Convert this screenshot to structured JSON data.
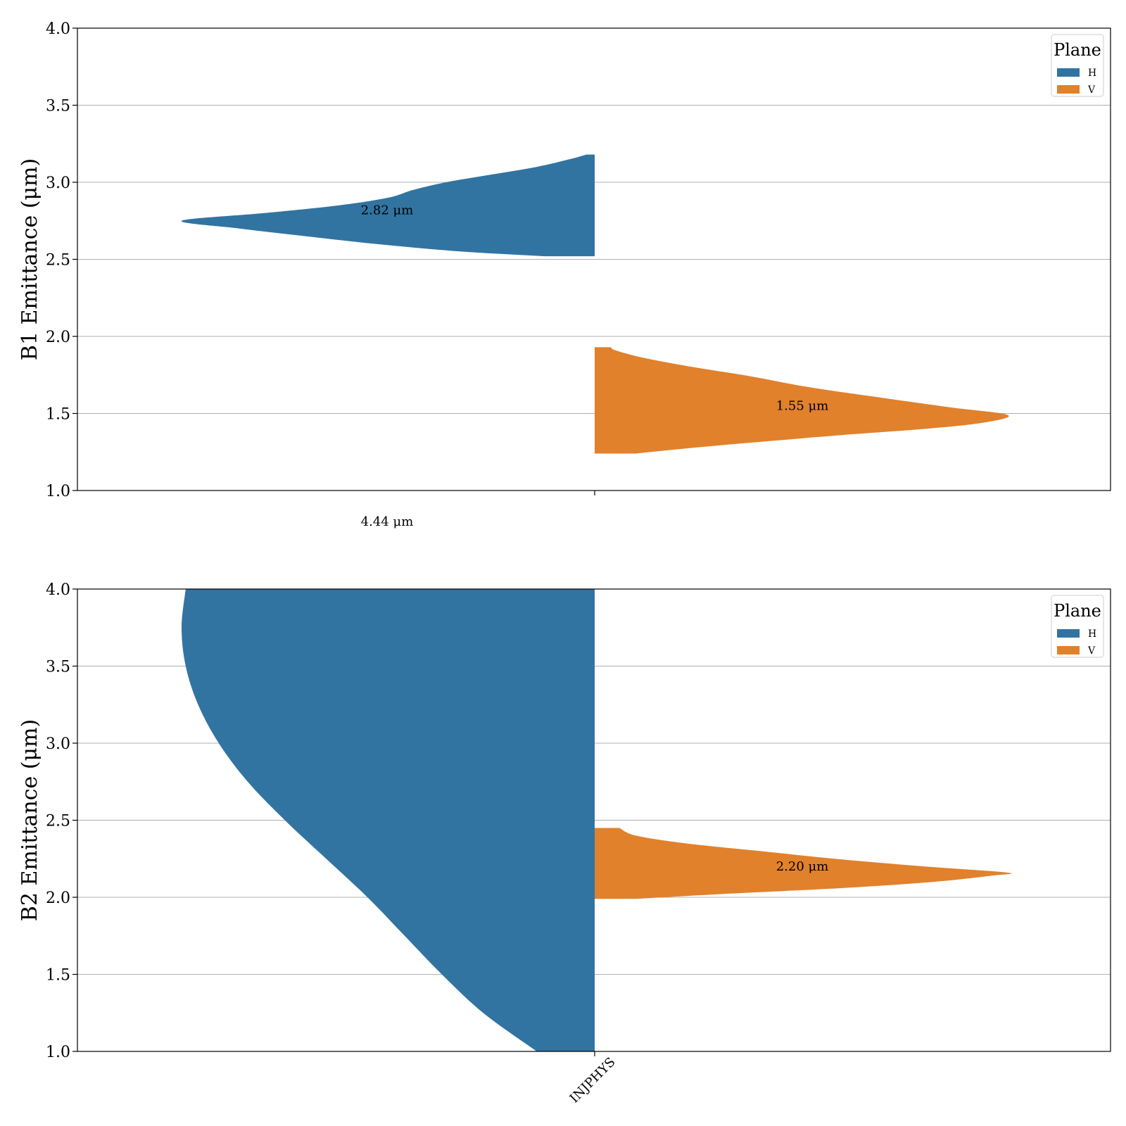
{
  "chart_data": [
    {
      "type": "violin",
      "split": true,
      "ylabel": "B1 Emittance (μm)",
      "ylim": [
        1.0,
        4.0
      ],
      "yticks": [
        "1.0",
        "1.5",
        "2.0",
        "2.5",
        "3.0",
        "3.5",
        "4.0"
      ],
      "grid": "y",
      "categories": [
        ""
      ],
      "legend": {
        "title": "Plane",
        "placement": "top-right",
        "entries": [
          "H",
          "V"
        ]
      },
      "series": [
        {
          "name": "H",
          "color": "#3274a1",
          "side": "left",
          "ymin": 2.52,
          "ymax": 3.18,
          "density": [
            [
              2.52,
              0.12
            ],
            [
              2.55,
              0.32
            ],
            [
              2.6,
              0.53
            ],
            [
              2.65,
              0.7
            ],
            [
              2.7,
              0.86
            ],
            [
              2.75,
              1.0
            ],
            [
              2.8,
              0.8
            ],
            [
              2.85,
              0.62
            ],
            [
              2.9,
              0.5
            ],
            [
              2.95,
              0.44
            ],
            [
              3.0,
              0.36
            ],
            [
              3.05,
              0.25
            ],
            [
              3.1,
              0.14
            ],
            [
              3.15,
              0.06
            ],
            [
              3.18,
              0.02
            ]
          ],
          "annotations": [
            {
              "text": "2.82 μm",
              "y": 2.82
            },
            {
              "text": "4.44 μm",
              "y": 0.8
            }
          ]
        },
        {
          "name": "V",
          "color": "#e1812c",
          "side": "right",
          "ymin": 1.24,
          "ymax": 1.93,
          "density": [
            [
              1.24,
              0.1
            ],
            [
              1.28,
              0.25
            ],
            [
              1.32,
              0.42
            ],
            [
              1.36,
              0.6
            ],
            [
              1.4,
              0.8
            ],
            [
              1.44,
              0.94
            ],
            [
              1.49,
              1.0
            ],
            [
              1.54,
              0.86
            ],
            [
              1.6,
              0.7
            ],
            [
              1.67,
              0.52
            ],
            [
              1.74,
              0.38
            ],
            [
              1.8,
              0.24
            ],
            [
              1.86,
              0.12
            ],
            [
              1.91,
              0.05
            ],
            [
              1.93,
              0.04
            ]
          ],
          "annotations": [
            {
              "text": "1.55 μm",
              "y": 1.55
            }
          ]
        }
      ]
    },
    {
      "type": "violin",
      "split": true,
      "ylabel": "B2 Emittance (μm)",
      "ylim": [
        1.0,
        4.0
      ],
      "yticks": [
        "1.0",
        "1.5",
        "2.0",
        "2.5",
        "3.0",
        "3.5",
        "4.0"
      ],
      "grid": "y",
      "categories": [
        "INJPHYS"
      ],
      "legend": {
        "title": "Plane",
        "placement": "top-right",
        "entries": [
          "H",
          "V"
        ]
      },
      "series": [
        {
          "name": "H",
          "color": "#3274a1",
          "side": "left",
          "ymin": 1.0,
          "ymax": 4.0,
          "density": [
            [
              1.0,
              0.14
            ],
            [
              1.25,
              0.27
            ],
            [
              1.5,
              0.37
            ],
            [
              1.75,
              0.46
            ],
            [
              2.0,
              0.55
            ],
            [
              2.25,
              0.65
            ],
            [
              2.5,
              0.75
            ],
            [
              2.75,
              0.84
            ],
            [
              3.0,
              0.91
            ],
            [
              3.25,
              0.96
            ],
            [
              3.5,
              0.99
            ],
            [
              3.75,
              1.0
            ],
            [
              4.0,
              0.99
            ]
          ],
          "annotations": []
        },
        {
          "name": "V",
          "color": "#e1812c",
          "side": "right",
          "ymin": 1.99,
          "ymax": 2.45,
          "density": [
            [
              1.99,
              0.1
            ],
            [
              2.02,
              0.3
            ],
            [
              2.06,
              0.6
            ],
            [
              2.1,
              0.82
            ],
            [
              2.14,
              0.96
            ],
            [
              2.16,
              1.0
            ],
            [
              2.2,
              0.8
            ],
            [
              2.25,
              0.58
            ],
            [
              2.3,
              0.4
            ],
            [
              2.35,
              0.22
            ],
            [
              2.4,
              0.1
            ],
            [
              2.45,
              0.06
            ]
          ],
          "annotations": [
            {
              "text": "2.20 μm",
              "y": 2.2
            }
          ]
        }
      ]
    }
  ]
}
